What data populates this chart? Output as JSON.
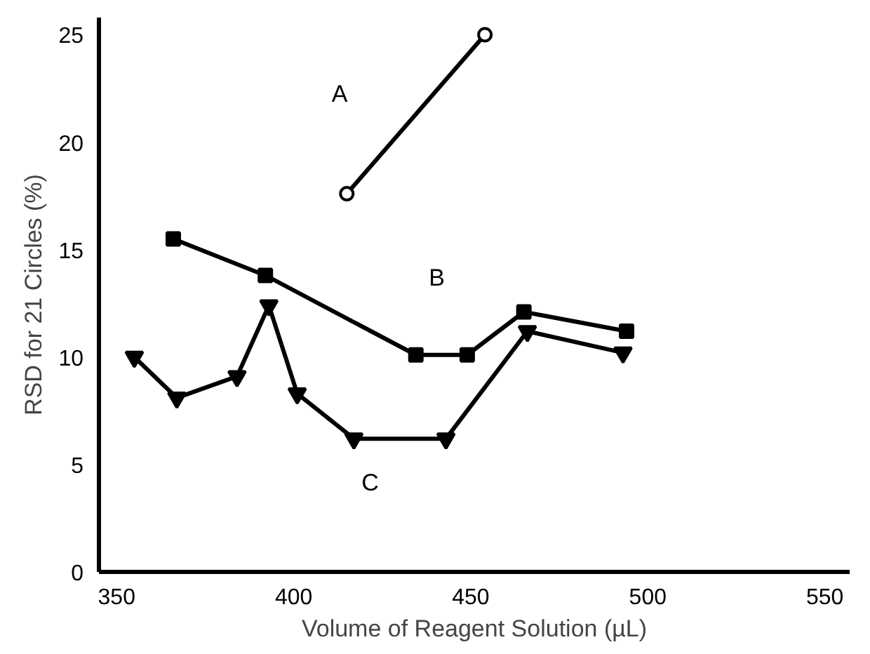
{
  "chart_data": {
    "type": "line",
    "xlabel": "Volume of Reagent Solution (µL)",
    "ylabel": "RSD for 21 Circles (%)",
    "xlim": [
      345,
      557
    ],
    "ylim": [
      0,
      25.8
    ],
    "xticks": [
      350,
      400,
      450,
      500,
      550
    ],
    "yticks": [
      0,
      5,
      10,
      15,
      20,
      25
    ],
    "grid": false,
    "line_style": "solid",
    "series": [
      {
        "name": "A",
        "color": "#000000",
        "marker": "circle",
        "x": [
          415,
          454
        ],
        "values": [
          17.6,
          25
        ]
      },
      {
        "name": "B",
        "color": "#000000",
        "marker": "square",
        "x": [
          366,
          392,
          434.5,
          449,
          465,
          494
        ],
        "values": [
          15.5,
          13.8,
          10.1,
          10.1,
          12.1,
          11.2
        ]
      },
      {
        "name": "C",
        "color": "#000000",
        "marker": "triangle",
        "x": [
          355,
          367,
          384,
          393,
          401,
          417,
          443,
          466,
          493
        ],
        "values": [
          10,
          8.1,
          9.1,
          12.4,
          8.3,
          6.2,
          6.2,
          11.2,
          10.2
        ]
      }
    ]
  }
}
